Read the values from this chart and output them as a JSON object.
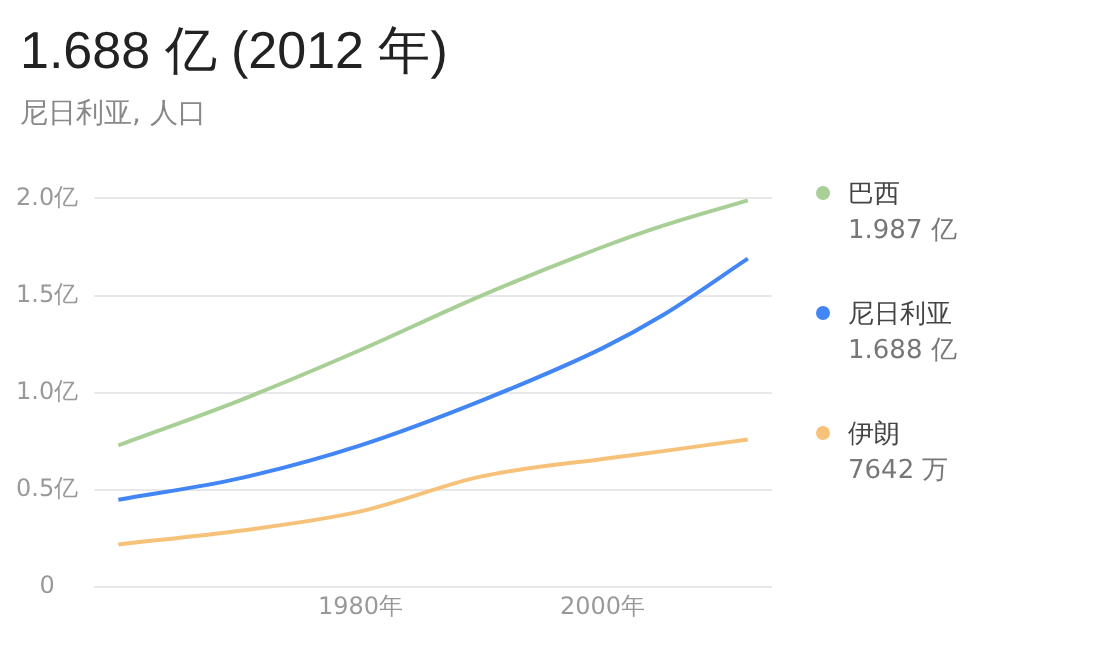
{
  "chart_data": {
    "type": "line",
    "title": "1.688 亿 (2012 年)",
    "subtitle": "尼日利亚, 人口",
    "x": [
      1960,
      1970,
      1980,
      1990,
      2000,
      2005,
      2012
    ],
    "series": [
      {
        "name": "巴西",
        "color": "#a8cf96",
        "values": [
          0.73,
          0.96,
          1.22,
          1.5,
          1.75,
          1.86,
          1.99
        ]
      },
      {
        "name": "尼日利亚",
        "color": "#4285f4",
        "values": [
          0.45,
          0.56,
          0.73,
          0.96,
          1.23,
          1.4,
          1.69
        ]
      },
      {
        "name": "伊朗",
        "color": "#f6c27a",
        "values": [
          0.22,
          0.29,
          0.39,
          0.57,
          0.66,
          0.7,
          0.76
        ]
      }
    ],
    "annotations": [
      "1.987 亿",
      "1.688 亿",
      "7642 万"
    ],
    "xlim": [
      1958,
      2014
    ],
    "xticks": [
      {
        "value": 1980,
        "label": "1980年"
      },
      {
        "value": 2000,
        "label": "2000年"
      }
    ],
    "ylim": [
      0,
      2
    ],
    "yticks": [
      0,
      {
        "value": 0.5,
        "label": "0.5亿"
      },
      {
        "value": 1,
        "label": "1.0亿"
      },
      {
        "value": 1.5,
        "label": "1.5亿"
      },
      {
        "value": 2,
        "label": "2.0亿"
      }
    ],
    "grid": "y",
    "legend": "right",
    "marker": "none",
    "line_style": "solid"
  }
}
